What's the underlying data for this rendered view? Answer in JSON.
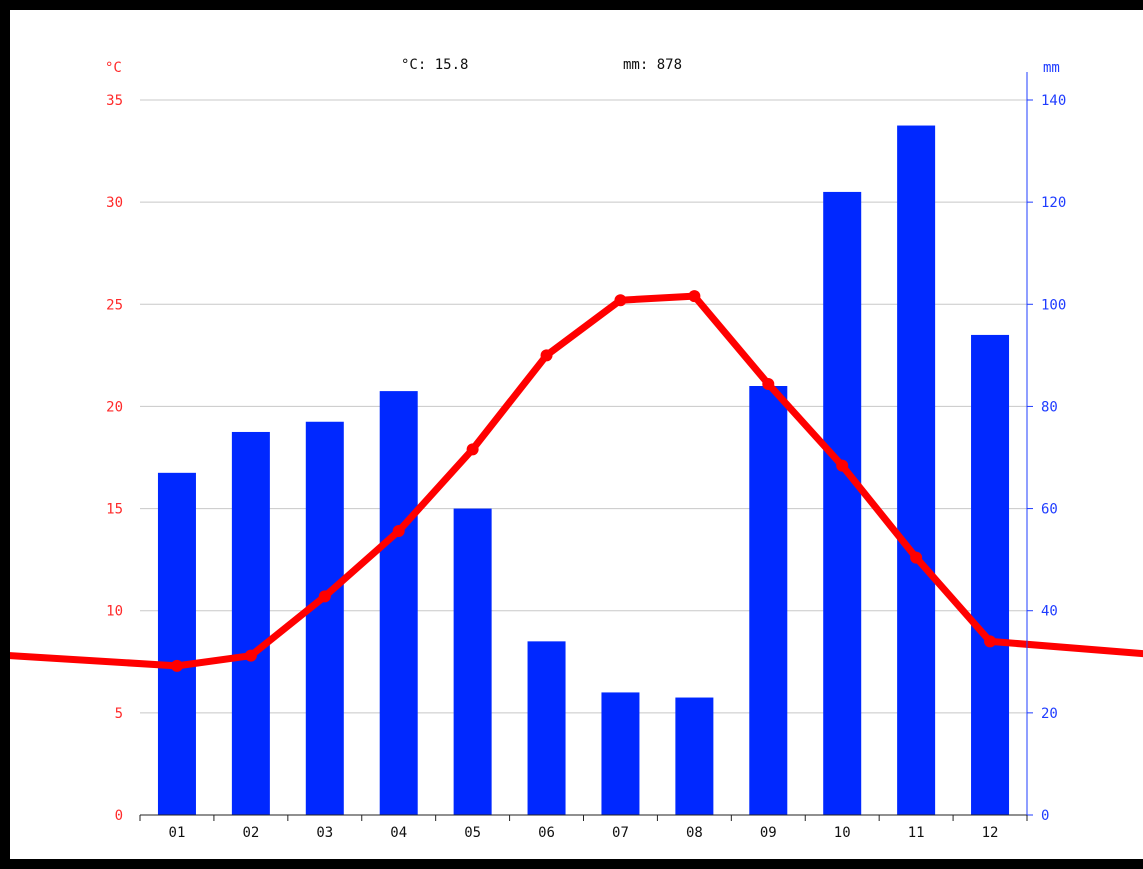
{
  "chart_data": {
    "type": "bar+line",
    "categories": [
      "01",
      "02",
      "03",
      "04",
      "05",
      "06",
      "07",
      "08",
      "09",
      "10",
      "11",
      "12"
    ],
    "series": [
      {
        "kind": "bar",
        "axis": "right",
        "color": "#0028ff",
        "values": [
          67,
          75,
          77,
          83,
          60,
          34,
          24,
          23,
          84,
          122,
          135,
          94
        ]
      },
      {
        "kind": "line",
        "axis": "left",
        "color": "#ff0000",
        "values": [
          7.3,
          7.8,
          10.7,
          13.9,
          17.9,
          22.5,
          25.2,
          25.4,
          21.1,
          17.1,
          12.6,
          8.5
        ],
        "edge_start": 7.8,
        "edge_end": 7.9
      }
    ],
    "left_axis": {
      "unit_label": "°C",
      "ylim": [
        0,
        35
      ],
      "ticks": [
        "0",
        "5",
        "10",
        "15",
        "20",
        "25",
        "30",
        "35"
      ],
      "color": "#ff2a2a"
    },
    "right_axis": {
      "unit_label": "mm",
      "ylim": [
        0,
        140
      ],
      "ticks": [
        "0",
        "20",
        "40",
        "60",
        "80",
        "100",
        "120",
        "140"
      ],
      "color": "#1f3cff"
    },
    "grid": true,
    "summary": {
      "temp_text": "°C: 15.8",
      "precip_text": "mm: 878"
    }
  }
}
